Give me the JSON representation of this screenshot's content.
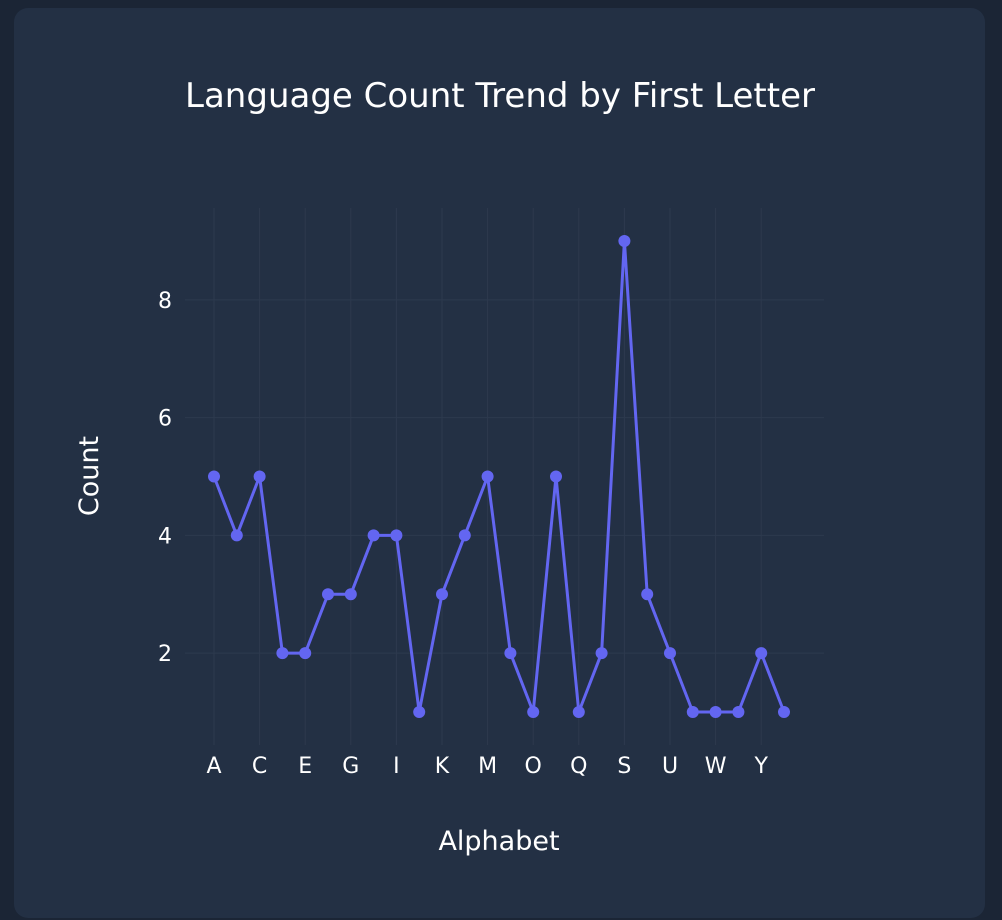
{
  "colors": {
    "page_background": "#1b2535",
    "card_background": "#233044",
    "series_color": "#6366f1",
    "grid_color": "#2d3a4e",
    "text_color": "#ffffff"
  },
  "chart_data": {
    "type": "line",
    "title": "Language Count Trend by First Letter",
    "xlabel": "Alphabet",
    "ylabel": "Count",
    "categories": [
      "A",
      "B",
      "C",
      "D",
      "E",
      "F",
      "G",
      "H",
      "I",
      "J",
      "K",
      "L",
      "M",
      "N",
      "O",
      "P",
      "Q",
      "R",
      "S",
      "T",
      "U",
      "V",
      "W",
      "X",
      "Y",
      "Z"
    ],
    "x_tick_labels": [
      "A",
      "C",
      "E",
      "G",
      "I",
      "K",
      "M",
      "O",
      "Q",
      "S",
      "U",
      "W",
      "Y"
    ],
    "y_ticks": [
      2,
      4,
      6,
      8
    ],
    "ylim": [
      0.45,
      9.55
    ],
    "grid": true,
    "legend": "none",
    "series": [
      {
        "values": [
          5,
          4,
          5,
          2,
          2,
          3,
          3,
          4,
          4,
          1,
          3,
          4,
          5,
          2,
          1,
          5,
          1,
          2,
          9,
          3,
          2,
          1,
          1,
          1,
          2,
          1
        ]
      }
    ]
  }
}
